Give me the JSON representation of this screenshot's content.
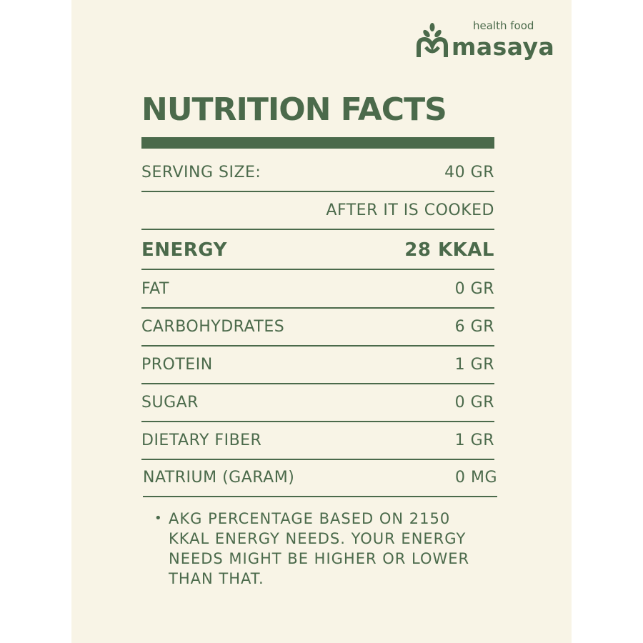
{
  "brand": {
    "tagline": "health food",
    "name": "masaya"
  },
  "title": "NUTRITION FACTS",
  "serving": {
    "label": "SERVING SIZE:",
    "value": "40 GR",
    "note": "AFTER IT IS COOKED"
  },
  "energy": {
    "label": "ENERGY",
    "value": "28 KKAL"
  },
  "nutrients": [
    {
      "label": "FAT",
      "value": "0 GR"
    },
    {
      "label": "CARBOHYDRATES",
      "value": "6 GR"
    },
    {
      "label": "PROTEIN",
      "value": "1 GR"
    },
    {
      "label": "SUGAR",
      "value": "0 GR"
    },
    {
      "label": "DIETARY FIBER",
      "value": "1 GR"
    },
    {
      "label": "NATRIUM (GARAM)",
      "value": "0 MG"
    }
  ],
  "footnote": "AKG PERCENTAGE BASED ON 2150 KKAL ENERGY NEEDS. YOUR ENERGY NEEDS MIGHT BE HIGHER OR LOWER THAN THAT.",
  "colors": {
    "background": "#f8f4e6",
    "accent": "#4b6a4b"
  }
}
